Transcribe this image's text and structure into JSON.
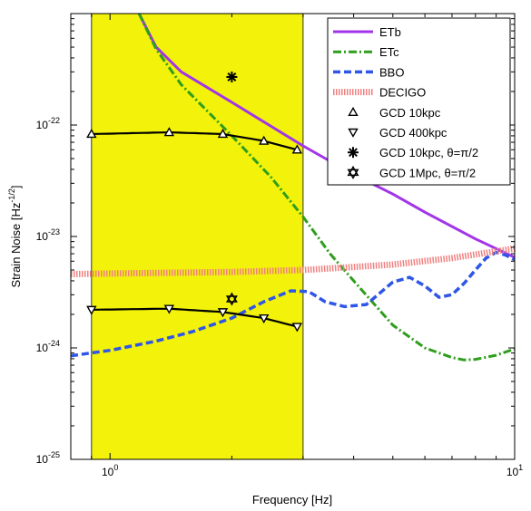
{
  "chart_data": {
    "type": "line",
    "xscale": "log",
    "yscale": "log",
    "xlim": [
      0.8,
      10
    ],
    "ylim": [
      1e-25,
      1e-21
    ],
    "xlabel": "Frequency [Hz]",
    "ylabel": "Strain Noise [Hz",
    "ylabel_sup": "-1/2",
    "ylabel_end": "]",
    "grid": false,
    "legend_position": "top-right",
    "x_ticks": [
      {
        "value": 1,
        "base": "10",
        "exp": "0"
      },
      {
        "value": 10,
        "base": "10",
        "exp": "1"
      }
    ],
    "y_ticks": [
      {
        "value": 1e-25,
        "base": "10",
        "exp": "-25"
      },
      {
        "value": 1e-24,
        "base": "10",
        "exp": "-24"
      },
      {
        "value": 1e-23,
        "base": "10",
        "exp": "-23"
      },
      {
        "value": 1e-22,
        "base": "10",
        "exp": "-22"
      }
    ],
    "band": {
      "x": [
        0.9,
        3.0
      ],
      "color": "#f2f20a"
    },
    "series": [
      {
        "name": "ETb",
        "color": "#a235e8",
        "style": "solid",
        "x": [
          1.18,
          1.3,
          1.5,
          2.0,
          3.0,
          4.0,
          5.0,
          6.0,
          8.0,
          10.0
        ],
        "y": [
          1e-21,
          5e-22,
          3e-22,
          1.6e-22,
          6.5e-23,
          3.6e-23,
          2.4e-23,
          1.65e-23,
          9.5e-24,
          6.5e-24
        ]
      },
      {
        "name": "ETc",
        "color": "#2e9e1c",
        "style": "dashdot",
        "x": [
          1.18,
          1.3,
          1.5,
          2.0,
          2.5,
          3.0,
          3.5,
          4.0,
          5.0,
          6.0,
          7.0,
          7.5,
          8.0,
          9.0,
          10.0
        ],
        "y": [
          1e-21,
          4.8e-22,
          2.3e-22,
          8e-23,
          3.4e-23,
          1.5e-23,
          7e-24,
          4e-24,
          1.6e-24,
          1e-24,
          8.2e-25,
          7.8e-25,
          7.9e-25,
          8.6e-25,
          9.8e-25
        ]
      },
      {
        "name": "BBO",
        "color": "#2f56e6",
        "style": "dashed",
        "x": [
          0.8,
          1.0,
          1.3,
          1.6,
          2.0,
          2.4,
          2.8,
          3.1,
          3.4,
          3.8,
          4.3,
          5.0,
          5.5,
          6.0,
          6.5,
          7.0,
          7.5,
          8.0,
          8.5,
          9.0,
          9.5,
          10.0
        ],
        "y": [
          8.5e-25,
          9.5e-25,
          1.15e-24,
          1.4e-24,
          1.85e-24,
          2.6e-24,
          3.25e-24,
          3.2e-24,
          2.6e-24,
          2.35e-24,
          2.45e-24,
          3.9e-24,
          4.3e-24,
          3.6e-24,
          2.85e-24,
          3e-24,
          3.8e-24,
          5e-24,
          6.4e-24,
          7.2e-24,
          6.8e-24,
          6.2e-24
        ]
      },
      {
        "name": "DECIGO",
        "color": "#f08080",
        "style": "hatched",
        "x": [
          0.8,
          1.0,
          2.0,
          3.0,
          5.0,
          7.0,
          10.0
        ],
        "y": [
          4.6e-24,
          4.65e-24,
          4.8e-24,
          5e-24,
          5.6e-24,
          6.4e-24,
          7.8e-24
        ]
      }
    ],
    "markers": [
      {
        "name": "GCD 10kpc",
        "symbol": "triangle-up",
        "x": [
          0.9,
          1.4,
          1.9,
          2.4,
          2.9
        ],
        "y": [
          8.3e-23,
          8.6e-23,
          8.3e-23,
          7.2e-23,
          6e-23
        ],
        "fit": true
      },
      {
        "name": "GCD 400kpc",
        "symbol": "triangle-down",
        "x": [
          0.9,
          1.4,
          1.9,
          2.4,
          2.9
        ],
        "y": [
          2.2e-24,
          2.25e-24,
          2.1e-24,
          1.85e-24,
          1.55e-24
        ],
        "fit": true
      },
      {
        "name": "GCD 10kpc, θ=π/2",
        "symbol": "asterisk",
        "x": [
          2.0
        ],
        "y": [
          2.7e-22
        ],
        "fit": false
      },
      {
        "name": "GCD 1Mpc, θ=π/2",
        "symbol": "star-of-david",
        "x": [
          2.0
        ],
        "y": [
          2.75e-24
        ],
        "fit": false
      }
    ],
    "legend": [
      {
        "label": "ETb",
        "kind": "line",
        "ref": "ETb"
      },
      {
        "label": "ETc",
        "kind": "line",
        "ref": "ETc"
      },
      {
        "label": "BBO",
        "kind": "line",
        "ref": "BBO"
      },
      {
        "label": "DECIGO",
        "kind": "line",
        "ref": "DECIGO"
      },
      {
        "label": "GCD 10kpc",
        "kind": "marker",
        "ref": "triangle-up"
      },
      {
        "label": "GCD 400kpc",
        "kind": "marker",
        "ref": "triangle-down"
      },
      {
        "label": "GCD 10kpc, θ=π/2",
        "kind": "marker",
        "ref": "asterisk"
      },
      {
        "label": "GCD 1Mpc, θ=π/2",
        "kind": "marker",
        "ref": "star-of-david"
      }
    ]
  }
}
